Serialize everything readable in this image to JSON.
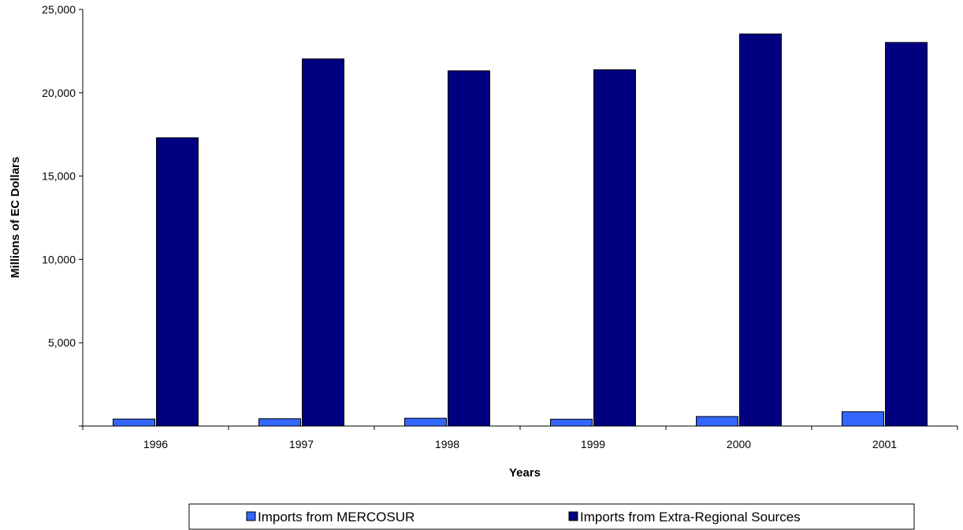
{
  "chart_data": {
    "type": "bar",
    "categories": [
      "1996",
      "1997",
      "1998",
      "1999",
      "2000",
      "2001"
    ],
    "series": [
      {
        "name": "Imports from MERCOSUR",
        "values": [
          420,
          440,
          470,
          410,
          570,
          860
        ],
        "color": "#3366ff"
      },
      {
        "name": "Imports from Extra-Regional Sources",
        "values": [
          17300,
          22030,
          21320,
          21380,
          23530,
          23020
        ],
        "color": "#000080"
      }
    ],
    "xlabel": "Years",
    "ylabel": "Millions of EC Dollars",
    "ylim": [
      0,
      25000
    ],
    "yticks": [
      0,
      5000,
      10000,
      15000,
      20000,
      25000
    ],
    "ytick_labels": [
      "",
      "5,000",
      "10,000",
      "15,000",
      "20,000",
      "25,000"
    ],
    "grid": false,
    "legend_position": "bottom"
  }
}
